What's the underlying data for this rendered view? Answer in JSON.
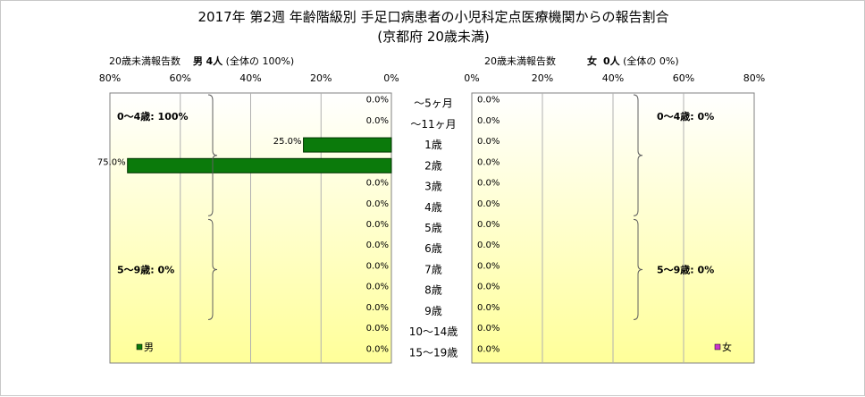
{
  "title": "2017年 第2週 年齢階級別 手足口病患者の小児科定点医療機関からの報告割合",
  "subtitle": "(京都府 20歳未満)",
  "left_header": {
    "label": "20歳未満報告数",
    "sex": "男",
    "count": "4人",
    "total": "(全体の 100%)"
  },
  "right_header": {
    "label": "20歳未満報告数",
    "sex": "女",
    "count": "0人",
    "total": "(全体の 0%)"
  },
  "legend": {
    "male": "男",
    "female": "女"
  },
  "colors": {
    "male": "#0b7a0b",
    "female": "#cc33cc",
    "bg_top": "#ffffff",
    "bg_bottom": "#ffff99"
  },
  "chart_data": {
    "type": "bar",
    "orientation": "horizontal-butterfly",
    "categories": [
      "〜5ヶ月",
      "〜11ヶ月",
      "1歳",
      "2歳",
      "3歳",
      "4歳",
      "5歳",
      "6歳",
      "7歳",
      "8歳",
      "9歳",
      "10〜14歳",
      "15〜19歳"
    ],
    "series": [
      {
        "name": "男",
        "values": [
          0,
          0,
          25.0,
          75.0,
          0,
          0,
          0,
          0,
          0,
          0,
          0,
          0,
          0
        ],
        "labels": [
          "0.0%",
          "0.0%",
          "25.0%",
          "75.0%",
          "0.0%",
          "0.0%",
          "0.0%",
          "0.0%",
          "0.0%",
          "0.0%",
          "0.0%",
          "0.0%",
          "0.0%"
        ]
      },
      {
        "name": "女",
        "values": [
          0,
          0,
          0,
          0,
          0,
          0,
          0,
          0,
          0,
          0,
          0,
          0,
          0
        ],
        "labels": [
          "0.0%",
          "0.0%",
          "0.0%",
          "0.0%",
          "0.0%",
          "0.0%",
          "0.0%",
          "0.0%",
          "0.0%",
          "0.0%",
          "0.0%",
          "0.0%",
          "0.0%"
        ]
      }
    ],
    "xlim": [
      0,
      80
    ],
    "left_ticks": [
      "80%",
      "60%",
      "40%",
      "20%",
      "0%"
    ],
    "right_ticks": [
      "0%",
      "20%",
      "40%",
      "60%",
      "80%"
    ],
    "groups": [
      {
        "label_left": "0〜4歳: 100%",
        "label_right": "0〜4歳: 0%",
        "from": 0,
        "to": 5
      },
      {
        "label_left": "5〜9歳: 0%",
        "label_right": "5〜9歳: 0%",
        "from": 6,
        "to": 10
      }
    ]
  }
}
